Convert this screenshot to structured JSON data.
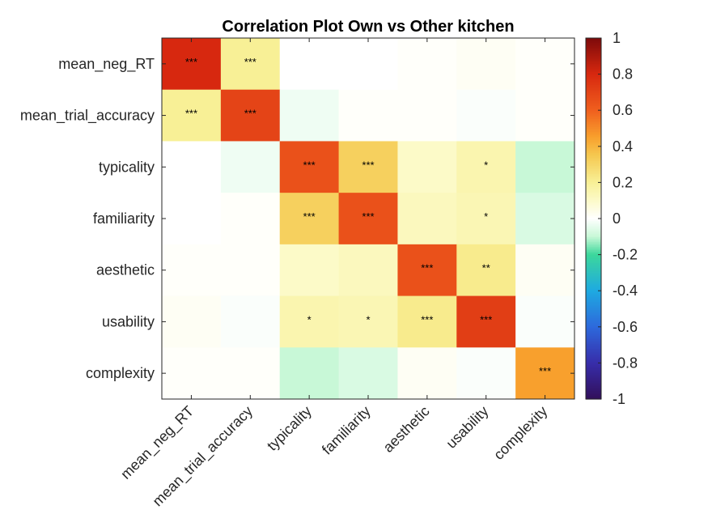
{
  "chart_data": {
    "type": "heatmap",
    "title": "Correlation Plot Own vs Other kitchen",
    "row_labels": [
      "mean_neg_RT",
      "mean_trial_accuracy",
      "typicality",
      "familiarity",
      "aesthetic",
      "usability",
      "complexity"
    ],
    "col_labels": [
      "mean_neg_RT",
      "mean_trial_accuracy",
      "typicality",
      "familiarity",
      "aesthetic",
      "usability",
      "complexity"
    ],
    "values": [
      [
        0.8,
        0.2,
        0.0,
        0.0,
        0.01,
        0.02,
        0.01
      ],
      [
        0.2,
        0.7,
        -0.03,
        0.01,
        0.01,
        -0.01,
        0.01
      ],
      [
        0.0,
        -0.03,
        0.65,
        0.32,
        0.1,
        0.15,
        -0.1
      ],
      [
        0.0,
        0.01,
        0.32,
        0.65,
        0.12,
        0.14,
        -0.07
      ],
      [
        0.01,
        0.01,
        0.1,
        0.12,
        0.65,
        0.22,
        0.02
      ],
      [
        0.02,
        -0.01,
        0.15,
        0.14,
        0.22,
        0.72,
        -0.01
      ],
      [
        0.01,
        0.01,
        -0.1,
        -0.07,
        0.02,
        -0.01,
        0.45
      ]
    ],
    "significance": [
      [
        "***",
        "***",
        "",
        "",
        "",
        "",
        ""
      ],
      [
        "***",
        "***",
        "",
        "",
        "",
        "",
        ""
      ],
      [
        "",
        "",
        "***",
        "***",
        "",
        "*",
        ""
      ],
      [
        "",
        "",
        "***",
        "***",
        "",
        "*",
        ""
      ],
      [
        "",
        "",
        "",
        "",
        "***",
        "**",
        ""
      ],
      [
        "",
        "",
        "*",
        "*",
        "***",
        "***",
        ""
      ],
      [
        "",
        "",
        "",
        "",
        "",
        "",
        "***"
      ]
    ],
    "colorbar": {
      "min": -1,
      "max": 1,
      "ticks": [
        1,
        0.8,
        0.6,
        0.4,
        0.2,
        0,
        -0.2,
        -0.4,
        -0.6,
        -0.8,
        -1
      ],
      "tick_labels": [
        "1",
        "0.8",
        "0.6",
        "0.4",
        "0.2",
        "0",
        "-0.2",
        "-0.4",
        "-0.6",
        "-0.8",
        "-1"
      ],
      "colormap": "diverging: dark navy → blue → cyan → green → white (0) → yellow → orange → red → dark red"
    }
  }
}
